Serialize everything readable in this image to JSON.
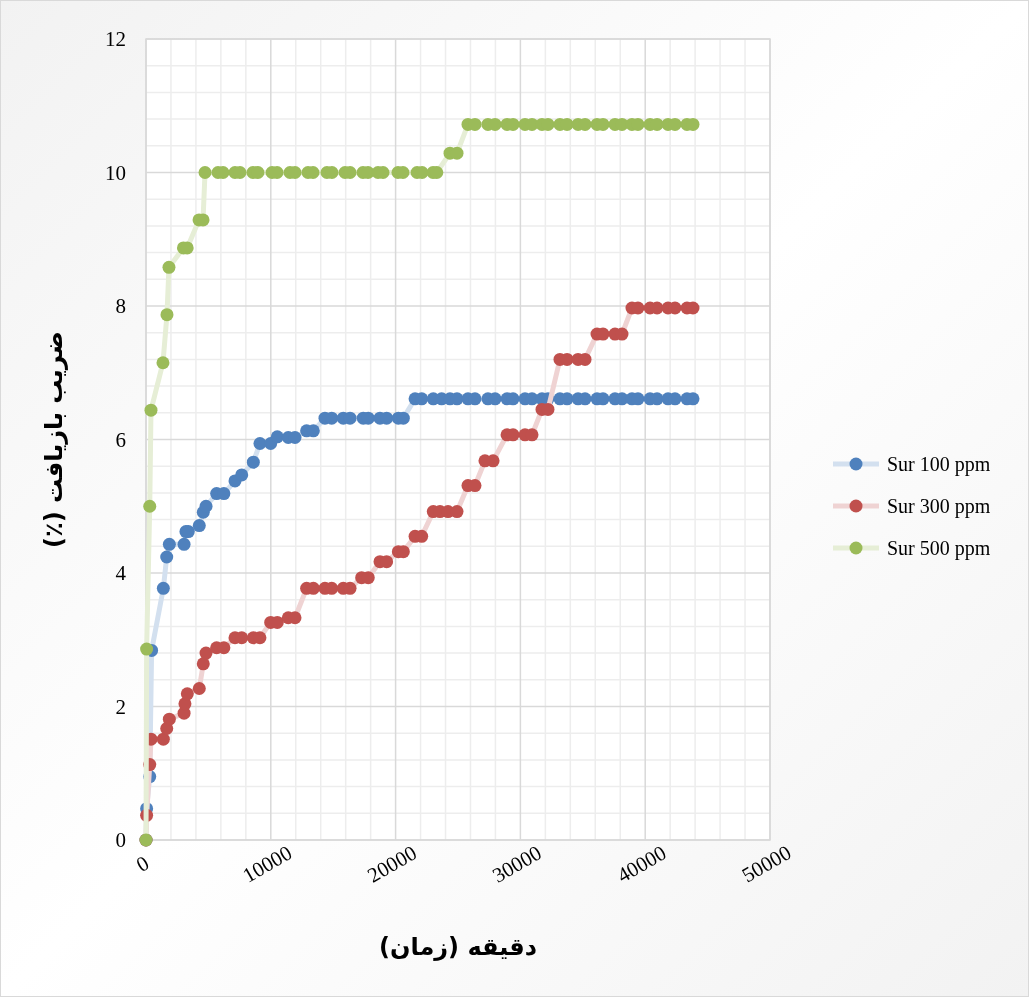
{
  "chart_data": {
    "type": "line",
    "xlabel": "دقیقه (زمان)",
    "ylabel": "ضریب بازیافت (٪)",
    "xlim": [
      0,
      50000
    ],
    "xticks": [
      0,
      10000,
      20000,
      30000,
      40000,
      50000
    ],
    "ylim": [
      0,
      12
    ],
    "yticks": [
      0,
      2,
      4,
      6,
      8,
      10,
      12
    ],
    "grid": true,
    "legend": "right",
    "marker": "circle",
    "series": [
      {
        "name": "Sur 100 ppm",
        "color": "#4f81bd",
        "x": [
          0,
          50,
          300,
          450,
          1390,
          1660,
          1870,
          3050,
          3200,
          3390,
          4270,
          4590,
          4810,
          5660,
          6240,
          7130,
          7670,
          8600,
          9130,
          9990,
          10520,
          11400,
          11940,
          12870,
          13410,
          14340,
          14880,
          15810,
          16350,
          17410,
          17810,
          18750,
          19280,
          20220,
          20620,
          21560,
          22090,
          23020,
          23690,
          24360,
          24920,
          25800,
          26360,
          27400,
          27970,
          28930,
          29410,
          30370,
          30930,
          31730,
          32210,
          33170,
          33740,
          34620,
          35180,
          36140,
          36620,
          37580,
          38140,
          38940,
          39420,
          40390,
          40950,
          41830,
          42390,
          43350,
          43830
        ],
        "values": [
          0,
          0.47,
          0.95,
          2.84,
          3.77,
          4.24,
          4.43,
          4.43,
          4.62,
          4.62,
          4.71,
          4.91,
          5.0,
          5.19,
          5.19,
          5.38,
          5.47,
          5.66,
          5.94,
          5.94,
          6.04,
          6.03,
          6.03,
          6.13,
          6.13,
          6.32,
          6.32,
          6.32,
          6.32,
          6.32,
          6.32,
          6.32,
          6.32,
          6.32,
          6.32,
          6.61,
          6.61,
          6.61,
          6.61,
          6.61,
          6.61,
          6.61,
          6.61,
          6.61,
          6.61,
          6.61,
          6.61,
          6.61,
          6.61,
          6.61,
          6.61,
          6.61,
          6.61,
          6.61,
          6.61,
          6.61,
          6.61,
          6.61,
          6.61,
          6.61,
          6.61,
          6.61,
          6.61,
          6.61,
          6.61,
          6.61,
          6.61
        ]
      },
      {
        "name": "Sur 300 ppm",
        "color": "#c0504d",
        "x": [
          0,
          50,
          300,
          400,
          1390,
          1660,
          1870,
          3050,
          3120,
          3310,
          4270,
          4590,
          4810,
          5660,
          6240,
          7130,
          7670,
          8600,
          9130,
          9990,
          10520,
          11400,
          11940,
          12870,
          13410,
          14340,
          14880,
          15810,
          16350,
          17280,
          17810,
          18750,
          19280,
          20220,
          20620,
          21560,
          22090,
          23020,
          23560,
          24200,
          24920,
          25800,
          26360,
          27160,
          27810,
          28930,
          29410,
          30370,
          30930,
          31730,
          32210,
          33170,
          33740,
          34620,
          35180,
          36140,
          36620,
          37580,
          38140,
          38940,
          39420,
          40390,
          40950,
          41830,
          42390,
          43350,
          43830
        ],
        "values": [
          0,
          0.37,
          1.13,
          1.51,
          1.51,
          1.67,
          1.81,
          1.9,
          2.04,
          2.19,
          2.27,
          2.64,
          2.8,
          2.88,
          2.88,
          3.03,
          3.03,
          3.03,
          3.03,
          3.26,
          3.26,
          3.33,
          3.33,
          3.77,
          3.77,
          3.77,
          3.77,
          3.77,
          3.77,
          3.93,
          3.93,
          4.17,
          4.17,
          4.32,
          4.32,
          4.55,
          4.55,
          4.92,
          4.92,
          4.92,
          4.92,
          5.31,
          5.31,
          5.68,
          5.68,
          6.07,
          6.07,
          6.07,
          6.07,
          6.45,
          6.45,
          7.2,
          7.2,
          7.2,
          7.2,
          7.58,
          7.58,
          7.58,
          7.58,
          7.97,
          7.97,
          7.97,
          7.97,
          7.97,
          7.97,
          7.97,
          7.97
        ]
      },
      {
        "name": "Sur 500 ppm",
        "color": "#9bbb59",
        "x": [
          0,
          50,
          300,
          400,
          1360,
          1680,
          1840,
          3000,
          3300,
          4250,
          4570,
          4730,
          5770,
          6170,
          7130,
          7530,
          8570,
          8970,
          10100,
          10500,
          11540,
          11940,
          12980,
          13380,
          14500,
          14900,
          15950,
          16350,
          17390,
          17790,
          18590,
          18990,
          20190,
          20590,
          21720,
          22120,
          23000,
          23300,
          24360,
          24920,
          25800,
          26360,
          27400,
          27970,
          28930,
          29410,
          30370,
          30930,
          31730,
          32210,
          33170,
          33740,
          34620,
          35180,
          36140,
          36620,
          37580,
          38140,
          38940,
          39420,
          40390,
          40950,
          41830,
          42390,
          43350,
          43830
        ],
        "values": [
          0,
          2.86,
          5.0,
          6.44,
          7.15,
          7.87,
          8.58,
          8.87,
          8.87,
          9.29,
          9.29,
          10.0,
          10.0,
          10.0,
          10.0,
          10.0,
          10.0,
          10.0,
          10.0,
          10.0,
          10.0,
          10.0,
          10.0,
          10.0,
          10.0,
          10.0,
          10.0,
          10.0,
          10.0,
          10.0,
          10.0,
          10.0,
          10.0,
          10.0,
          10.0,
          10.0,
          10.0,
          10.0,
          10.29,
          10.29,
          10.72,
          10.72,
          10.72,
          10.72,
          10.72,
          10.72,
          10.72,
          10.72,
          10.72,
          10.72,
          10.72,
          10.72,
          10.72,
          10.72,
          10.72,
          10.72,
          10.72,
          10.72,
          10.72,
          10.72,
          10.72,
          10.72,
          10.72,
          10.72,
          10.72,
          10.72
        ]
      }
    ]
  }
}
